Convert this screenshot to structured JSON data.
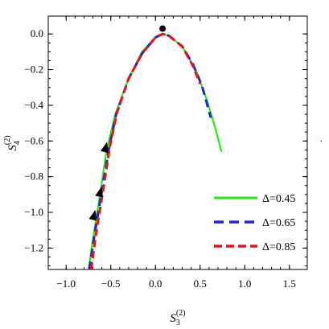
{
  "chart_data": {
    "type": "line",
    "xlabel": {
      "base": "S",
      "sup": "(2)",
      "sub": "3"
    },
    "ylabel": {
      "base": "S",
      "sup": "(2)",
      "sub": "4"
    },
    "xlim": [
      -1.2,
      1.7
    ],
    "ylim": [
      -1.32,
      0.1
    ],
    "xticks": [
      -1.0,
      -0.5,
      0.0,
      0.5,
      1.0,
      1.5
    ],
    "xtick_labels": [
      "−1.0",
      "−0.5",
      "0.0",
      "0.5",
      "1.0",
      "1.5"
    ],
    "yticks": [
      0.0,
      -0.2,
      -0.4,
      -0.6,
      -0.8,
      -1.0,
      -1.2
    ],
    "ytick_labels": [
      "0.0",
      "−0.2",
      "−0.4",
      "−0.6",
      "−0.8",
      "−1.0",
      "−1.2"
    ],
    "grid": false,
    "legend_position": "bottom-right",
    "series": [
      {
        "name": "Δ=0.45",
        "color": "#22ee11",
        "style": "solid",
        "points": [
          [
            -0.75,
            -1.32
          ],
          [
            -0.7,
            -1.15
          ],
          [
            -0.62,
            -0.9
          ],
          [
            -0.55,
            -0.66
          ],
          [
            -0.45,
            -0.45
          ],
          [
            -0.3,
            -0.25
          ],
          [
            -0.15,
            -0.1
          ],
          [
            0.0,
            -0.02
          ],
          [
            0.07,
            0.0
          ],
          [
            0.15,
            -0.01
          ],
          [
            0.3,
            -0.07
          ],
          [
            0.45,
            -0.2
          ],
          [
            0.57,
            -0.36
          ],
          [
            0.66,
            -0.51
          ],
          [
            0.74,
            -0.66
          ]
        ]
      },
      {
        "name": "Δ=0.65",
        "color": "#2222dd",
        "style": "dashed",
        "points": [
          [
            -0.74,
            -1.32
          ],
          [
            -0.68,
            -1.12
          ],
          [
            -0.6,
            -0.88
          ],
          [
            -0.52,
            -0.64
          ],
          [
            -0.44,
            -0.45
          ],
          [
            -0.3,
            -0.25
          ],
          [
            -0.15,
            -0.11
          ],
          [
            0.0,
            -0.02
          ],
          [
            0.08,
            0.0
          ],
          [
            0.15,
            -0.01
          ],
          [
            0.3,
            -0.07
          ],
          [
            0.42,
            -0.17
          ],
          [
            0.52,
            -0.29
          ],
          [
            0.62,
            -0.47
          ]
        ]
      },
      {
        "name": "Δ=0.85",
        "color": "#ee1111",
        "style": "dashed",
        "points": [
          [
            -0.72,
            -1.32
          ],
          [
            -0.66,
            -1.1
          ],
          [
            -0.58,
            -0.86
          ],
          [
            -0.51,
            -0.63
          ],
          [
            -0.43,
            -0.44
          ],
          [
            -0.3,
            -0.25
          ],
          [
            -0.15,
            -0.11
          ],
          [
            0.0,
            -0.02
          ],
          [
            0.08,
            0.0
          ],
          [
            0.15,
            -0.01
          ],
          [
            0.3,
            -0.07
          ],
          [
            0.42,
            -0.18
          ],
          [
            0.5,
            -0.28
          ]
        ]
      }
    ],
    "marker_point": [
      0.08,
      0.03
    ],
    "arrows": [
      {
        "x": -0.56,
        "y": -0.64
      },
      {
        "x": -0.62,
        "y": -0.89
      },
      {
        "x": -0.69,
        "y": -1.02
      }
    ]
  },
  "stray_mark": "."
}
